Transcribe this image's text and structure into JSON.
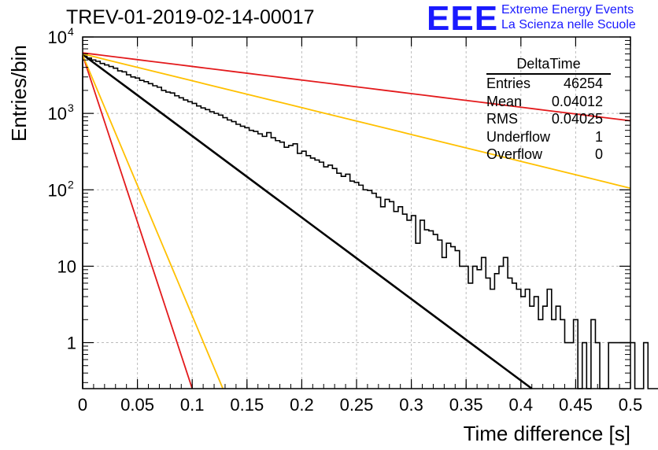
{
  "title": "TREV-01-2019-02-14-00017",
  "logo": {
    "mark": "EEE",
    "line1": "Extreme Energy Events",
    "line2": "La Scienza nelle Scuole",
    "color": "#1a1aff"
  },
  "stats_box": {
    "name": "DeltaTime",
    "rows": [
      {
        "label": "Entries",
        "value": "46254"
      },
      {
        "label": "Mean",
        "value": "0.04012"
      },
      {
        "label": "RMS",
        "value": "0.04025"
      },
      {
        "label": "Underflow",
        "value": "1"
      },
      {
        "label": "Overflow",
        "value": "0"
      }
    ]
  },
  "chart_data": {
    "type": "line",
    "xlabel": "Time difference [s]",
    "ylabel": "Entries/bin",
    "xlim": [
      0,
      0.5
    ],
    "ylim": [
      0.25,
      10000
    ],
    "yscale": "log",
    "grid": true,
    "x_ticks": [
      "0",
      "0.05",
      "0.1",
      "0.15",
      "0.2",
      "0.25",
      "0.3",
      "0.35",
      "0.4",
      "0.45",
      "0.5"
    ],
    "y_ticks": [
      {
        "value": 1,
        "label": "1"
      },
      {
        "value": 10,
        "label": "10"
      },
      {
        "value": 100,
        "label": "10",
        "exp": "2"
      },
      {
        "value": 1000,
        "label": "10",
        "exp": "3"
      },
      {
        "value": 10000,
        "label": "10",
        "exp": "4"
      }
    ],
    "histogram": {
      "bin_width": 0.004,
      "x_start": 0,
      "color": "#000000",
      "counts": [
        5600,
        5300,
        5000,
        4800,
        4500,
        4300,
        4100,
        3900,
        3600,
        3500,
        3200,
        3000,
        2900,
        2700,
        2600,
        2450,
        2300,
        2200,
        2000,
        1900,
        1850,
        1700,
        1600,
        1500,
        1420,
        1350,
        1250,
        1180,
        1120,
        1050,
        1000,
        950,
        880,
        820,
        780,
        720,
        680,
        650,
        600,
        580,
        540,
        500,
        560,
        480,
        440,
        420,
        360,
        380,
        400,
        300,
        320,
        280,
        260,
        245,
        230,
        200,
        210,
        190,
        165,
        150,
        160,
        130,
        125,
        115,
        100,
        98,
        90,
        80,
        60,
        75,
        70,
        52,
        60,
        48,
        40,
        46,
        20,
        40,
        30,
        29,
        26,
        22,
        13,
        20,
        18,
        16,
        10,
        10,
        6,
        10,
        9,
        13,
        7,
        5,
        8,
        10,
        13,
        7,
        6,
        5,
        4,
        5,
        3,
        4,
        2,
        3,
        5,
        2,
        3,
        2,
        1,
        1,
        2,
        0,
        1,
        0,
        2,
        1,
        0,
        0,
        1,
        1,
        1,
        1,
        1,
        1,
        0,
        0,
        1,
        0,
        0,
        0,
        1,
        0,
        0,
        0,
        0,
        0,
        0,
        0,
        0,
        1,
        0,
        0,
        0,
        0,
        0,
        0,
        1,
        0,
        0,
        0,
        0,
        0,
        0,
        1,
        0,
        0,
        0,
        0,
        0,
        0,
        0,
        0,
        0,
        0,
        0,
        0,
        0,
        0,
        0,
        0,
        0,
        0,
        0,
        0,
        0,
        0,
        0,
        0,
        0,
        0,
        0,
        0,
        0,
        0,
        0,
        0,
        0,
        0,
        0,
        0
      ]
    },
    "series": [
      {
        "type": "exponential",
        "color": "#000000",
        "x": [
          0,
          0.41
        ],
        "y": [
          5900,
          0.25
        ]
      },
      {
        "type": "exponential",
        "color": "#e31a1c",
        "x": [
          0,
          0.5
        ],
        "y": [
          6200,
          800
        ]
      },
      {
        "type": "exponential",
        "color": "#ffc000",
        "x": [
          0,
          0.5
        ],
        "y": [
          6000,
          105
        ]
      },
      {
        "type": "exponential",
        "color": "#e31a1c",
        "x": [
          0,
          0.1
        ],
        "y": [
          5800,
          0.25
        ]
      },
      {
        "type": "exponential",
        "color": "#ffc000",
        "x": [
          0,
          0.128
        ],
        "y": [
          5800,
          0.25
        ]
      }
    ]
  }
}
